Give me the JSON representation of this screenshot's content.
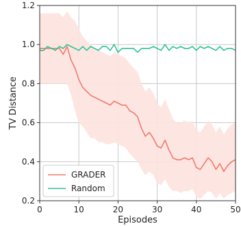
{
  "chart_data": {
    "type": "line",
    "title": "",
    "xlabel": "Episodes",
    "ylabel": "TV Distance",
    "xlim": [
      0,
      50
    ],
    "ylim": [
      0.2,
      1.2
    ],
    "xticks": [
      0,
      10,
      20,
      30,
      40,
      50
    ],
    "yticks": [
      0.2,
      0.4,
      0.6,
      0.8,
      1.0,
      1.2
    ],
    "xtick_labels": [
      "0",
      "10",
      "20",
      "30",
      "40",
      "50"
    ],
    "ytick_labels": [
      "0.2",
      "0.4",
      "0.6",
      "0.8",
      "1.0",
      "1.2"
    ],
    "grid": true,
    "legend_position": "bottom-left",
    "x": [
      0,
      1,
      2,
      3,
      4,
      5,
      6,
      7,
      8,
      9,
      10,
      11,
      12,
      13,
      14,
      15,
      16,
      17,
      18,
      19,
      20,
      21,
      22,
      23,
      24,
      25,
      26,
      27,
      28,
      29,
      30,
      31,
      32,
      33,
      34,
      35,
      36,
      37,
      38,
      39,
      40,
      41,
      42,
      43,
      44,
      45,
      46,
      47,
      48,
      49,
      50
    ],
    "series": [
      {
        "name": "GRADER",
        "color": "#f07a6a",
        "band_color": "#fde3df",
        "values": [
          0.98,
          0.98,
          0.98,
          0.98,
          0.98,
          0.98,
          0.95,
          0.99,
          0.92,
          0.88,
          0.82,
          0.78,
          0.76,
          0.74,
          0.73,
          0.72,
          0.71,
          0.7,
          0.69,
          0.71,
          0.7,
          0.69,
          0.69,
          0.66,
          0.65,
          0.63,
          0.57,
          0.53,
          0.55,
          0.52,
          0.48,
          0.47,
          0.51,
          0.46,
          0.42,
          0.41,
          0.41,
          0.42,
          0.41,
          0.42,
          0.37,
          0.36,
          0.39,
          0.42,
          0.4,
          0.36,
          0.39,
          0.35,
          0.38,
          0.4,
          0.41
        ],
        "lower": [
          0.8,
          0.8,
          0.8,
          0.8,
          0.8,
          0.8,
          0.8,
          0.8,
          0.74,
          0.66,
          0.6,
          0.58,
          0.55,
          0.52,
          0.52,
          0.5,
          0.5,
          0.49,
          0.49,
          0.5,
          0.49,
          0.48,
          0.47,
          0.44,
          0.42,
          0.4,
          0.36,
          0.33,
          0.35,
          0.33,
          0.29,
          0.28,
          0.31,
          0.27,
          0.25,
          0.25,
          0.24,
          0.25,
          0.25,
          0.26,
          0.22,
          0.21,
          0.23,
          0.25,
          0.24,
          0.21,
          0.24,
          0.21,
          0.23,
          0.24,
          0.25
        ],
        "upper": [
          1.16,
          1.16,
          1.16,
          1.16,
          1.16,
          1.16,
          1.14,
          1.17,
          1.14,
          1.12,
          1.08,
          1.04,
          1.02,
          1.0,
          0.98,
          0.97,
          0.96,
          0.95,
          0.94,
          0.96,
          0.95,
          0.94,
          0.93,
          0.9,
          0.88,
          0.86,
          0.8,
          0.76,
          0.78,
          0.75,
          0.7,
          0.68,
          0.72,
          0.67,
          0.62,
          0.6,
          0.6,
          0.61,
          0.6,
          0.61,
          0.56,
          0.55,
          0.58,
          0.61,
          0.59,
          0.55,
          0.58,
          0.54,
          0.57,
          0.59,
          0.6
        ]
      },
      {
        "name": "Random",
        "color": "#2ec296",
        "values": [
          0.97,
          0.97,
          0.99,
          0.98,
          0.97,
          0.99,
          0.98,
          1.0,
          0.99,
          0.98,
          0.97,
          0.99,
          0.97,
          0.99,
          0.98,
          0.97,
          0.99,
          0.99,
          0.97,
          1.0,
          0.96,
          0.98,
          0.98,
          0.98,
          0.98,
          0.96,
          0.98,
          0.98,
          0.98,
          0.99,
          0.98,
          0.97,
          1.0,
          0.97,
          0.99,
          0.98,
          0.99,
          0.98,
          0.98,
          0.99,
          0.97,
          0.99,
          0.98,
          0.99,
          0.98,
          0.97,
          0.99,
          0.97,
          0.98,
          0.98,
          0.97
        ]
      }
    ]
  }
}
